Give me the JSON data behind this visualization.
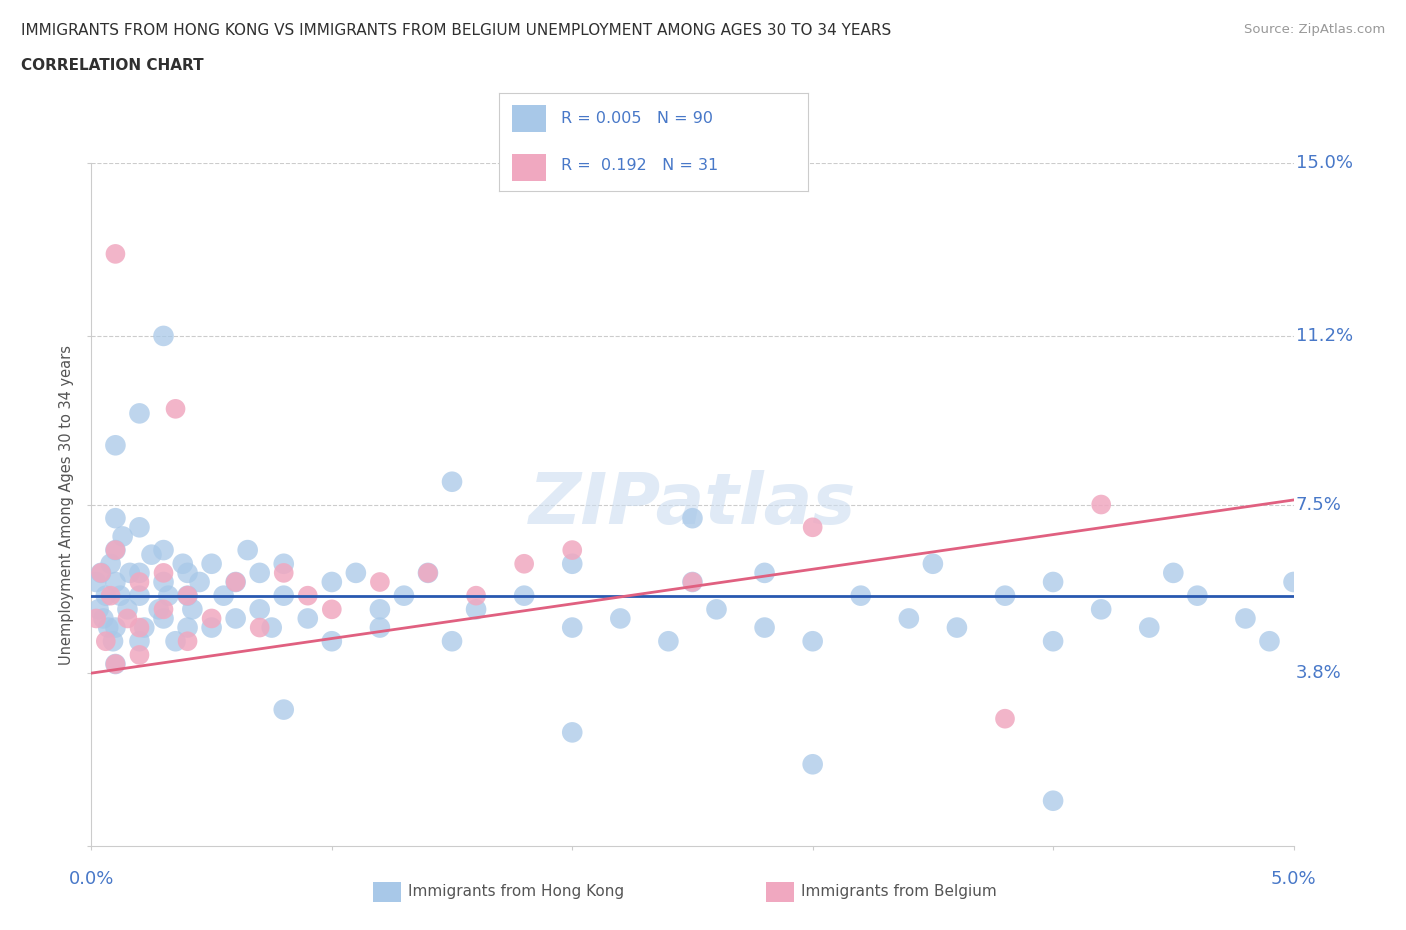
{
  "title_line1": "IMMIGRANTS FROM HONG KONG VS IMMIGRANTS FROM BELGIUM UNEMPLOYMENT AMONG AGES 30 TO 34 YEARS",
  "title_line2": "CORRELATION CHART",
  "source_text": "Source: ZipAtlas.com",
  "ylabel_label": "Unemployment Among Ages 30 to 34 years",
  "legend_hk": "Immigrants from Hong Kong",
  "legend_be": "Immigrants from Belgium",
  "r_hk": "0.005",
  "n_hk": "90",
  "r_be": "0.192",
  "n_be": "31",
  "color_hk": "#a8c8e8",
  "color_be": "#f0a8c0",
  "line_color_hk": "#2858b0",
  "line_color_be": "#e06080",
  "title_color": "#303030",
  "axis_label_color": "#4878c8",
  "background_color": "#ffffff",
  "xlim": [
    0.0,
    0.05
  ],
  "ylim": [
    0.0,
    0.15
  ],
  "hk_line_y0": 0.055,
  "hk_line_y1": 0.055,
  "be_line_y0": 0.038,
  "be_line_y1": 0.076,
  "hk_x": [
    0.0002,
    0.0003,
    0.0004,
    0.0005,
    0.0006,
    0.0007,
    0.0008,
    0.0009,
    0.001,
    0.001,
    0.001,
    0.001,
    0.001,
    0.0012,
    0.0013,
    0.0015,
    0.0016,
    0.002,
    0.002,
    0.002,
    0.002,
    0.0022,
    0.0025,
    0.0028,
    0.003,
    0.003,
    0.003,
    0.0032,
    0.0035,
    0.0038,
    0.004,
    0.004,
    0.004,
    0.0042,
    0.0045,
    0.005,
    0.005,
    0.0055,
    0.006,
    0.006,
    0.0065,
    0.007,
    0.007,
    0.0075,
    0.008,
    0.008,
    0.009,
    0.01,
    0.01,
    0.011,
    0.012,
    0.012,
    0.013,
    0.014,
    0.015,
    0.016,
    0.018,
    0.02,
    0.02,
    0.022,
    0.024,
    0.025,
    0.026,
    0.028,
    0.028,
    0.03,
    0.032,
    0.034,
    0.035,
    0.036,
    0.038,
    0.04,
    0.04,
    0.042,
    0.044,
    0.045,
    0.046,
    0.048,
    0.049,
    0.05,
    0.003,
    0.008,
    0.015,
    0.02,
    0.03,
    0.04,
    0.001,
    0.002,
    0.025
  ],
  "hk_y": [
    0.058,
    0.052,
    0.06,
    0.05,
    0.055,
    0.048,
    0.062,
    0.045,
    0.065,
    0.072,
    0.058,
    0.048,
    0.04,
    0.055,
    0.068,
    0.052,
    0.06,
    0.07,
    0.055,
    0.045,
    0.06,
    0.048,
    0.064,
    0.052,
    0.058,
    0.065,
    0.05,
    0.055,
    0.045,
    0.062,
    0.055,
    0.048,
    0.06,
    0.052,
    0.058,
    0.062,
    0.048,
    0.055,
    0.058,
    0.05,
    0.065,
    0.052,
    0.06,
    0.048,
    0.055,
    0.062,
    0.05,
    0.058,
    0.045,
    0.06,
    0.052,
    0.048,
    0.055,
    0.06,
    0.045,
    0.052,
    0.055,
    0.048,
    0.062,
    0.05,
    0.045,
    0.058,
    0.052,
    0.048,
    0.06,
    0.045,
    0.055,
    0.05,
    0.062,
    0.048,
    0.055,
    0.058,
    0.045,
    0.052,
    0.048,
    0.06,
    0.055,
    0.05,
    0.045,
    0.058,
    0.112,
    0.03,
    0.08,
    0.025,
    0.018,
    0.01,
    0.088,
    0.095,
    0.072
  ],
  "be_x": [
    0.0002,
    0.0004,
    0.0006,
    0.0008,
    0.001,
    0.001,
    0.001,
    0.0015,
    0.002,
    0.002,
    0.002,
    0.003,
    0.003,
    0.0035,
    0.004,
    0.004,
    0.005,
    0.006,
    0.007,
    0.008,
    0.009,
    0.01,
    0.012,
    0.014,
    0.016,
    0.018,
    0.02,
    0.025,
    0.03,
    0.038,
    0.042
  ],
  "be_y": [
    0.05,
    0.06,
    0.045,
    0.055,
    0.04,
    0.065,
    0.13,
    0.05,
    0.042,
    0.058,
    0.048,
    0.052,
    0.06,
    0.096,
    0.045,
    0.055,
    0.05,
    0.058,
    0.048,
    0.06,
    0.055,
    0.052,
    0.058,
    0.06,
    0.055,
    0.062,
    0.065,
    0.058,
    0.07,
    0.028,
    0.075
  ]
}
